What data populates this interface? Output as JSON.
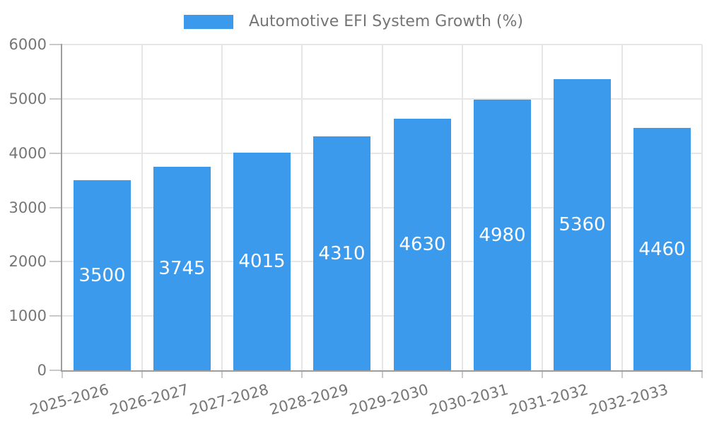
{
  "chart_data": {
    "type": "bar",
    "series_name": "Automotive EFI System Growth (%)",
    "legend_position": "top",
    "categories": [
      "2025-2026",
      "2026-2027",
      "2027-2028",
      "2028-2029",
      "2029-2030",
      "2030-2031",
      "2031-2032",
      "2032-2033"
    ],
    "values": [
      3500,
      3745,
      4015,
      4310,
      4630,
      4980,
      5360,
      4460
    ],
    "data_labels_shown": true,
    "ylim": [
      0,
      6000
    ],
    "ytick_step": 1000,
    "ytick_labels": [
      "0",
      "1000",
      "2000",
      "3000",
      "4000",
      "5000",
      "6000"
    ],
    "grid": true,
    "x_label_rotation_deg": -15,
    "colors": {
      "bar": "#3B9AEC",
      "bar_label": "#FFFFFF",
      "axis_text": "#757575",
      "axis_line": "#9E9E9E",
      "gridline": "#E6E6E6",
      "tick": "#C9C9C9",
      "background": "#FFFFFF"
    }
  }
}
